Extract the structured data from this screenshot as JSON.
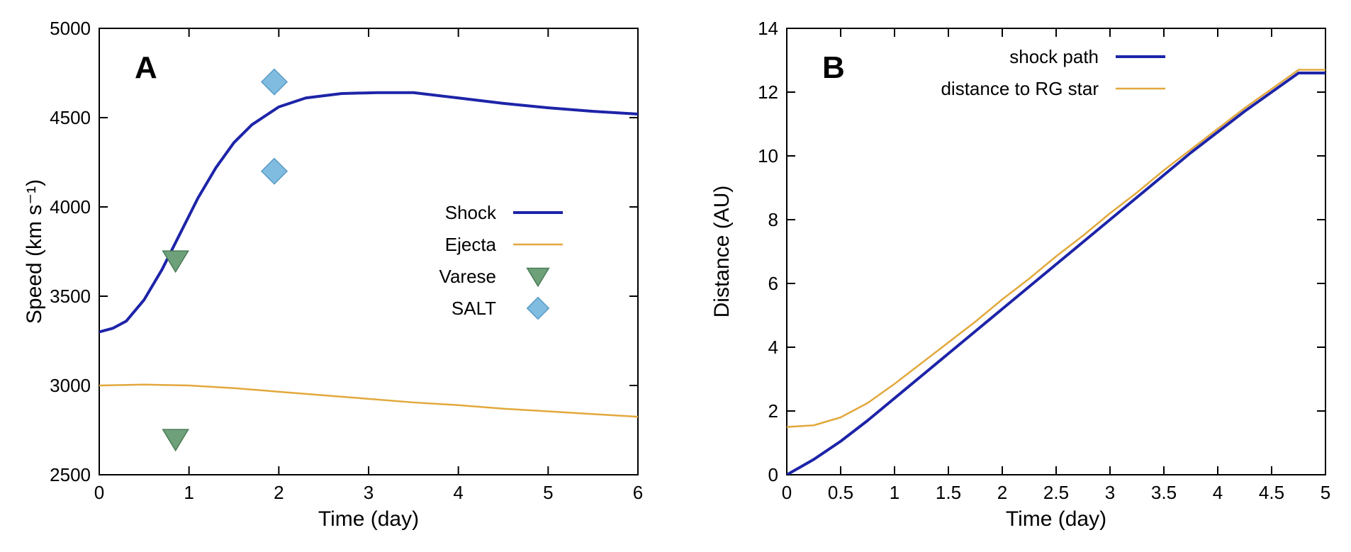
{
  "figure": {
    "background": "#ffffff",
    "axis_color": "#000000",
    "tick_fontsize": 26,
    "label_fontsize": 30,
    "legend_fontsize": 26,
    "panel_label_fontsize": 44,
    "panel_label_weight": "bold"
  },
  "panelA": {
    "label": "A",
    "xlabel": "Time (day)",
    "ylabel": "Speed (km s⁻¹)",
    "xlim": [
      0,
      6
    ],
    "ylim": [
      2500,
      5000
    ],
    "xticks": [
      0,
      1,
      2,
      3,
      4,
      5,
      6
    ],
    "yticks": [
      2500,
      3000,
      3500,
      4000,
      4500,
      5000
    ],
    "line_width": 3,
    "series": [
      {
        "name": "Shock",
        "type": "line",
        "color": "#1d24a8",
        "width": 4,
        "points": [
          [
            0,
            3300
          ],
          [
            0.15,
            3320
          ],
          [
            0.3,
            3360
          ],
          [
            0.5,
            3480
          ],
          [
            0.7,
            3650
          ],
          [
            0.9,
            3850
          ],
          [
            1.1,
            4050
          ],
          [
            1.3,
            4220
          ],
          [
            1.5,
            4360
          ],
          [
            1.7,
            4460
          ],
          [
            2.0,
            4560
          ],
          [
            2.3,
            4610
          ],
          [
            2.7,
            4635
          ],
          [
            3.1,
            4640
          ],
          [
            3.5,
            4640
          ],
          [
            4.0,
            4610
          ],
          [
            4.5,
            4580
          ],
          [
            5.0,
            4555
          ],
          [
            5.5,
            4535
          ],
          [
            6.0,
            4520
          ]
        ]
      },
      {
        "name": "Ejecta",
        "type": "line",
        "color": "#e2a83c",
        "width": 2.5,
        "points": [
          [
            0,
            3000
          ],
          [
            0.5,
            3005
          ],
          [
            1.0,
            3000
          ],
          [
            1.5,
            2985
          ],
          [
            2.0,
            2965
          ],
          [
            2.5,
            2945
          ],
          [
            3.0,
            2925
          ],
          [
            3.5,
            2905
          ],
          [
            4.0,
            2890
          ],
          [
            4.5,
            2870
          ],
          [
            5.0,
            2855
          ],
          [
            5.5,
            2840
          ],
          [
            6.0,
            2825
          ]
        ]
      },
      {
        "name": "Varese",
        "type": "marker",
        "marker": "triangle-down",
        "color": "#6ea07a",
        "stroke": "#4a7c57",
        "size": 18,
        "points": [
          [
            0.85,
            3700
          ],
          [
            0.85,
            2700
          ]
        ]
      },
      {
        "name": "SALT",
        "type": "marker",
        "marker": "diamond",
        "color": "#80bce0",
        "stroke": "#5a9bc5",
        "size": 18,
        "points": [
          [
            1.95,
            4700
          ],
          [
            1.95,
            4200
          ]
        ]
      }
    ],
    "legend_items": [
      "Shock",
      "Ejecta",
      "Varese",
      "SALT"
    ]
  },
  "panelB": {
    "label": "B",
    "xlabel": "Time (day)",
    "ylabel": "Distance (AU)",
    "xlim": [
      0,
      5
    ],
    "ylim": [
      0,
      14
    ],
    "xticks": [
      0,
      0.5,
      1,
      1.5,
      2,
      2.5,
      3,
      3.5,
      4,
      4.5,
      5
    ],
    "yticks": [
      0,
      2,
      4,
      6,
      8,
      10,
      12,
      14
    ],
    "series": [
      {
        "name": "shock path",
        "type": "line",
        "color": "#1d24a8",
        "width": 4,
        "points": [
          [
            0,
            0
          ],
          [
            0.25,
            0.48
          ],
          [
            0.5,
            1.05
          ],
          [
            0.75,
            1.7
          ],
          [
            1.0,
            2.4
          ],
          [
            1.25,
            3.1
          ],
          [
            1.5,
            3.8
          ],
          [
            1.75,
            4.5
          ],
          [
            2.0,
            5.2
          ],
          [
            2.25,
            5.9
          ],
          [
            2.5,
            6.6
          ],
          [
            2.75,
            7.3
          ],
          [
            3.0,
            8.0
          ],
          [
            3.25,
            8.7
          ],
          [
            3.5,
            9.4
          ],
          [
            3.75,
            10.1
          ],
          [
            4.0,
            10.75
          ],
          [
            4.25,
            11.4
          ],
          [
            4.5,
            12.0
          ],
          [
            4.75,
            12.6
          ],
          [
            5.0,
            12.6
          ]
        ]
      },
      {
        "name": "distance to RG star",
        "type": "line",
        "color": "#e2a83c",
        "width": 2.5,
        "points": [
          [
            0,
            1.5
          ],
          [
            0.25,
            1.55
          ],
          [
            0.5,
            1.8
          ],
          [
            0.75,
            2.25
          ],
          [
            1.0,
            2.85
          ],
          [
            1.25,
            3.5
          ],
          [
            1.5,
            4.15
          ],
          [
            1.75,
            4.8
          ],
          [
            2.0,
            5.5
          ],
          [
            2.25,
            6.15
          ],
          [
            2.5,
            6.85
          ],
          [
            2.75,
            7.5
          ],
          [
            3.0,
            8.2
          ],
          [
            3.25,
            8.85
          ],
          [
            3.5,
            9.55
          ],
          [
            3.75,
            10.2
          ],
          [
            4.0,
            10.85
          ],
          [
            4.25,
            11.5
          ],
          [
            4.5,
            12.1
          ],
          [
            4.75,
            12.7
          ],
          [
            5.0,
            12.7
          ]
        ]
      }
    ],
    "legend_items": [
      "shock path",
      "distance to RG star"
    ]
  }
}
